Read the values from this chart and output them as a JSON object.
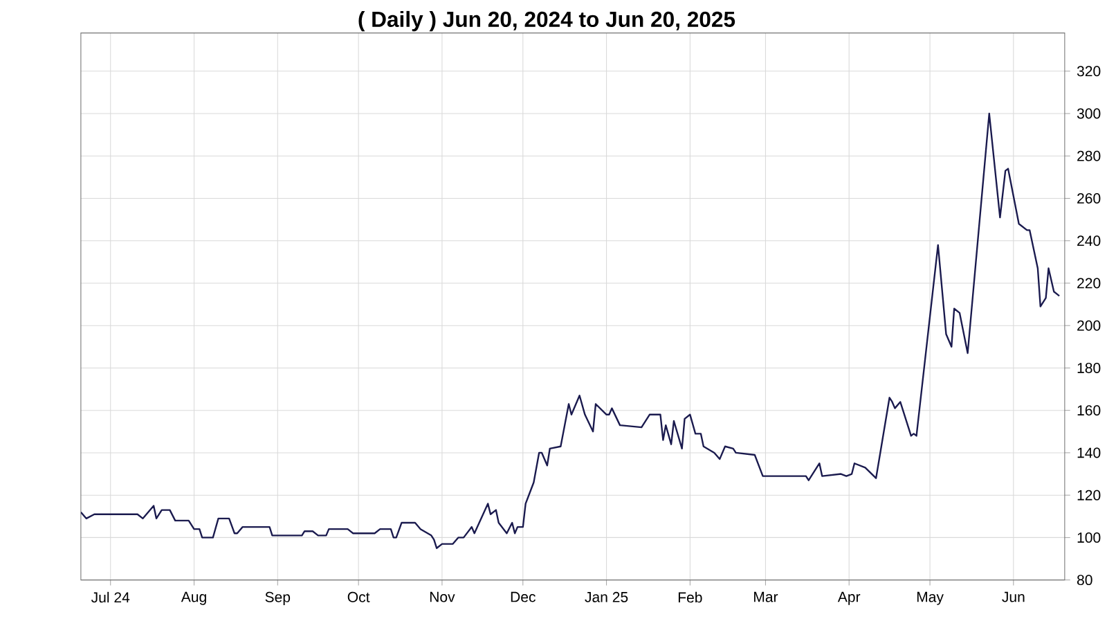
{
  "chart_data": {
    "type": "line",
    "title": "( Daily ) Jun 20, 2024 to Jun 20, 2025",
    "x": [
      "2024-06-20",
      "2024-06-22",
      "2024-06-25",
      "2024-07-11",
      "2024-07-13",
      "2024-07-17",
      "2024-07-18",
      "2024-07-20",
      "2024-07-23",
      "2024-07-25",
      "2024-07-30",
      "2024-08-01",
      "2024-08-03",
      "2024-08-04",
      "2024-08-08",
      "2024-08-10",
      "2024-08-14",
      "2024-08-16",
      "2024-08-17",
      "2024-08-19",
      "2024-08-29",
      "2024-08-30",
      "2024-09-10",
      "2024-09-11",
      "2024-09-14",
      "2024-09-16",
      "2024-09-19",
      "2024-09-20",
      "2024-09-27",
      "2024-09-29",
      "2024-10-07",
      "2024-10-09",
      "2024-10-13",
      "2024-10-14",
      "2024-10-15",
      "2024-10-17",
      "2024-10-22",
      "2024-10-24",
      "2024-10-28",
      "2024-10-29",
      "2024-10-30",
      "2024-11-01",
      "2024-11-05",
      "2024-11-07",
      "2024-11-09",
      "2024-11-12",
      "2024-11-13",
      "2024-11-18",
      "2024-11-19",
      "2024-11-21",
      "2024-11-22",
      "2024-11-25",
      "2024-11-27",
      "2024-11-28",
      "2024-11-29",
      "2024-12-01",
      "2024-12-02",
      "2024-12-05",
      "2024-12-07",
      "2024-12-08",
      "2024-12-10",
      "2024-12-11",
      "2024-12-15",
      "2024-12-18",
      "2024-12-19",
      "2024-12-22",
      "2024-12-24",
      "2024-12-27",
      "2024-12-28",
      "2025-01-01",
      "2025-01-02",
      "2025-01-03",
      "2025-01-06",
      "2025-01-14",
      "2025-01-17",
      "2025-01-21",
      "2025-01-22",
      "2025-01-23",
      "2025-01-25",
      "2025-01-26",
      "2025-01-29",
      "2025-01-30",
      "2025-02-01",
      "2025-02-03",
      "2025-02-05",
      "2025-02-06",
      "2025-02-10",
      "2025-02-12",
      "2025-02-14",
      "2025-02-17",
      "2025-02-18",
      "2025-02-25",
      "2025-02-28",
      "2025-03-16",
      "2025-03-17",
      "2025-03-21",
      "2025-03-22",
      "2025-03-29",
      "2025-03-31",
      "2025-04-02",
      "2025-04-03",
      "2025-04-07",
      "2025-04-11",
      "2025-04-16",
      "2025-04-17",
      "2025-04-18",
      "2025-04-20",
      "2025-04-24",
      "2025-04-25",
      "2025-04-26",
      "2025-05-04",
      "2025-05-07",
      "2025-05-09",
      "2025-05-10",
      "2025-05-12",
      "2025-05-15",
      "2025-05-23",
      "2025-05-27",
      "2025-05-29",
      "2025-05-30",
      "2025-06-03",
      "2025-06-06",
      "2025-06-07",
      "2025-06-10",
      "2025-06-11",
      "2025-06-13",
      "2025-06-14",
      "2025-06-16",
      "2025-06-18"
    ],
    "series": [
      {
        "color": "#1a1a4e",
        "values": [
          112,
          109,
          111,
          111,
          109,
          115,
          109,
          113,
          113,
          108,
          108,
          104,
          104,
          100,
          100,
          109,
          109,
          102,
          102,
          105,
          105,
          101,
          101,
          103,
          103,
          101,
          101,
          104,
          104,
          102,
          102,
          104,
          104,
          100,
          100,
          107,
          107,
          104,
          101,
          99,
          95,
          97,
          97,
          100,
          100,
          105,
          102,
          116,
          111,
          113,
          107,
          102,
          107,
          102,
          105,
          105,
          116,
          126,
          140,
          140,
          134,
          142,
          143,
          163,
          158,
          167,
          158,
          150,
          163,
          158,
          158,
          161,
          153,
          152,
          158,
          158,
          146,
          153,
          144,
          155,
          142,
          156,
          158,
          149,
          149,
          143,
          140,
          137,
          143,
          142,
          140,
          139,
          129,
          129,
          127,
          135,
          129,
          130,
          129,
          130,
          135,
          133,
          128,
          166,
          164,
          161,
          164,
          148,
          149,
          148,
          238,
          196,
          190,
          208,
          206,
          187,
          300,
          251,
          273,
          274,
          248,
          245,
          245,
          227,
          209,
          213,
          227,
          216,
          214
        ]
      }
    ],
    "xlim": [
      "2024-06-20",
      "2025-06-20"
    ],
    "xticks": [
      {
        "value": "2024-07-01",
        "label": "Jul 24"
      },
      {
        "value": "2024-08-01",
        "label": "Aug"
      },
      {
        "value": "2024-09-01",
        "label": "Sep"
      },
      {
        "value": "2024-10-01",
        "label": "Oct"
      },
      {
        "value": "2024-11-01",
        "label": "Nov"
      },
      {
        "value": "2024-12-01",
        "label": "Dec"
      },
      {
        "value": "2025-01-01",
        "label": "Jan 25"
      },
      {
        "value": "2025-02-01",
        "label": "Feb"
      },
      {
        "value": "2025-03-01",
        "label": "Mar"
      },
      {
        "value": "2025-04-01",
        "label": "Apr"
      },
      {
        "value": "2025-05-01",
        "label": "May"
      },
      {
        "value": "2025-06-01",
        "label": "Jun"
      }
    ],
    "ylim": [
      80,
      338
    ],
    "yticks": [
      80,
      100,
      120,
      140,
      160,
      180,
      200,
      220,
      240,
      260,
      280,
      300,
      320
    ],
    "grid": true,
    "legend": false,
    "marker": "none",
    "line_style": "solid"
  }
}
